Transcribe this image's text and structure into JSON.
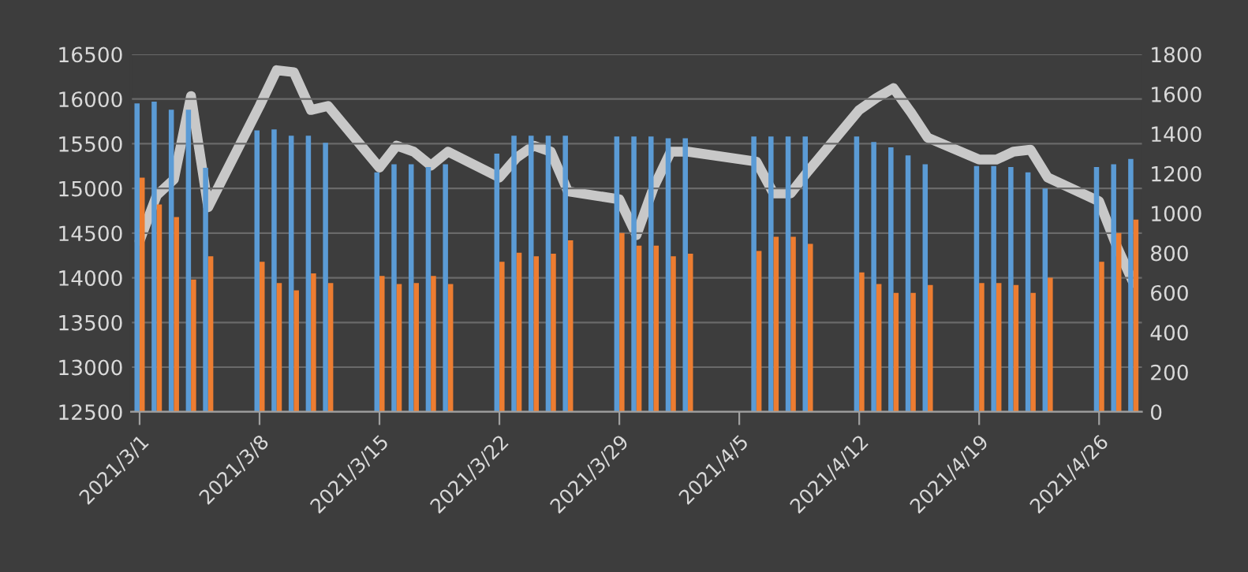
{
  "chart_data": {
    "type": "bar",
    "x": [
      "2021-03-01",
      "2021-03-02",
      "2021-03-03",
      "2021-03-04",
      "2021-03-05",
      "2021-03-08",
      "2021-03-09",
      "2021-03-10",
      "2021-03-11",
      "2021-03-12",
      "2021-03-15",
      "2021-03-16",
      "2021-03-17",
      "2021-03-18",
      "2021-03-19",
      "2021-03-22",
      "2021-03-23",
      "2021-03-24",
      "2021-03-25",
      "2021-03-26",
      "2021-03-29",
      "2021-03-30",
      "2021-03-31",
      "2021-04-01",
      "2021-04-02",
      "2021-04-06",
      "2021-04-07",
      "2021-04-08",
      "2021-04-09",
      "2021-04-12",
      "2021-04-13",
      "2021-04-14",
      "2021-04-15",
      "2021-04-16",
      "2021-04-19",
      "2021-04-20",
      "2021-04-21",
      "2021-04-22",
      "2021-04-23",
      "2021-04-26",
      "2021-04-27",
      "2021-04-28"
    ],
    "series": [
      {
        "color": "#5b9bd5",
        "values": [
          15950,
          15970,
          15880,
          15880,
          15230,
          15650,
          15660,
          15590,
          15590,
          15510,
          15180,
          15270,
          15270,
          15240,
          15270,
          15390,
          15590,
          15590,
          15590,
          15590,
          15580,
          15580,
          15580,
          15560,
          15560,
          15580,
          15580,
          15580,
          15580,
          15580,
          15520,
          15460,
          15370,
          15270,
          15250,
          15250,
          15240,
          15180,
          15000,
          15240,
          15270,
          15330
        ]
      },
      {
        "color": "#ed7d31",
        "values": [
          15120,
          14820,
          14680,
          13980,
          14240,
          14180,
          13940,
          13860,
          14050,
          13940,
          14020,
          13930,
          13940,
          14020,
          13930,
          14180,
          14280,
          14240,
          14270,
          14420,
          14500,
          14360,
          14360,
          14240,
          14270,
          14300,
          14460,
          14460,
          14380,
          14060,
          13930,
          13830,
          13830,
          13920,
          13940,
          13940,
          13920,
          13830,
          14000,
          14180,
          14500,
          14650
        ]
      },
      {
        "type": "line",
        "axis": "y2",
        "color": "#c8c8c8",
        "values": [
          860,
          1090,
          1170,
          1590,
          1030,
          1540,
          1720,
          1710,
          1520,
          1540,
          1230,
          1340,
          1310,
          1240,
          1310,
          1180,
          1280,
          1340,
          1310,
          1110,
          1070,
          890,
          1130,
          1310,
          1310,
          1260,
          1100,
          1100,
          1210,
          1520,
          1580,
          1630,
          1510,
          1380,
          1270,
          1270,
          1310,
          1320,
          1180,
          1060,
          840,
          650
        ]
      }
    ],
    "xlim": [
      "2021-02-28T12:00",
      "2021-04-28T12:00"
    ],
    "xticks": [
      {
        "value": "2021-03-01",
        "label": "2021/3/1"
      },
      {
        "value": "2021-03-08",
        "label": "2021/3/8"
      },
      {
        "value": "2021-03-15",
        "label": "2021/3/15"
      },
      {
        "value": "2021-03-22",
        "label": "2021/3/22"
      },
      {
        "value": "2021-03-29",
        "label": "2021/3/29"
      },
      {
        "value": "2021-04-05",
        "label": "2021/4/5"
      },
      {
        "value": "2021-04-12",
        "label": "2021/4/12"
      },
      {
        "value": "2021-04-19",
        "label": "2021/4/19"
      },
      {
        "value": "2021-04-26",
        "label": "2021/4/26"
      }
    ],
    "ylim": [
      12500,
      16500
    ],
    "yticks": [
      12500,
      13000,
      13500,
      14000,
      14500,
      15000,
      15500,
      16000,
      16500
    ],
    "y2lim": [
      0,
      1800
    ],
    "y2ticks": [
      0,
      200,
      400,
      600,
      800,
      1000,
      1200,
      1400,
      1600,
      1800
    ],
    "grid": "y",
    "legend": false,
    "marker": "none",
    "line_style": "solid"
  }
}
